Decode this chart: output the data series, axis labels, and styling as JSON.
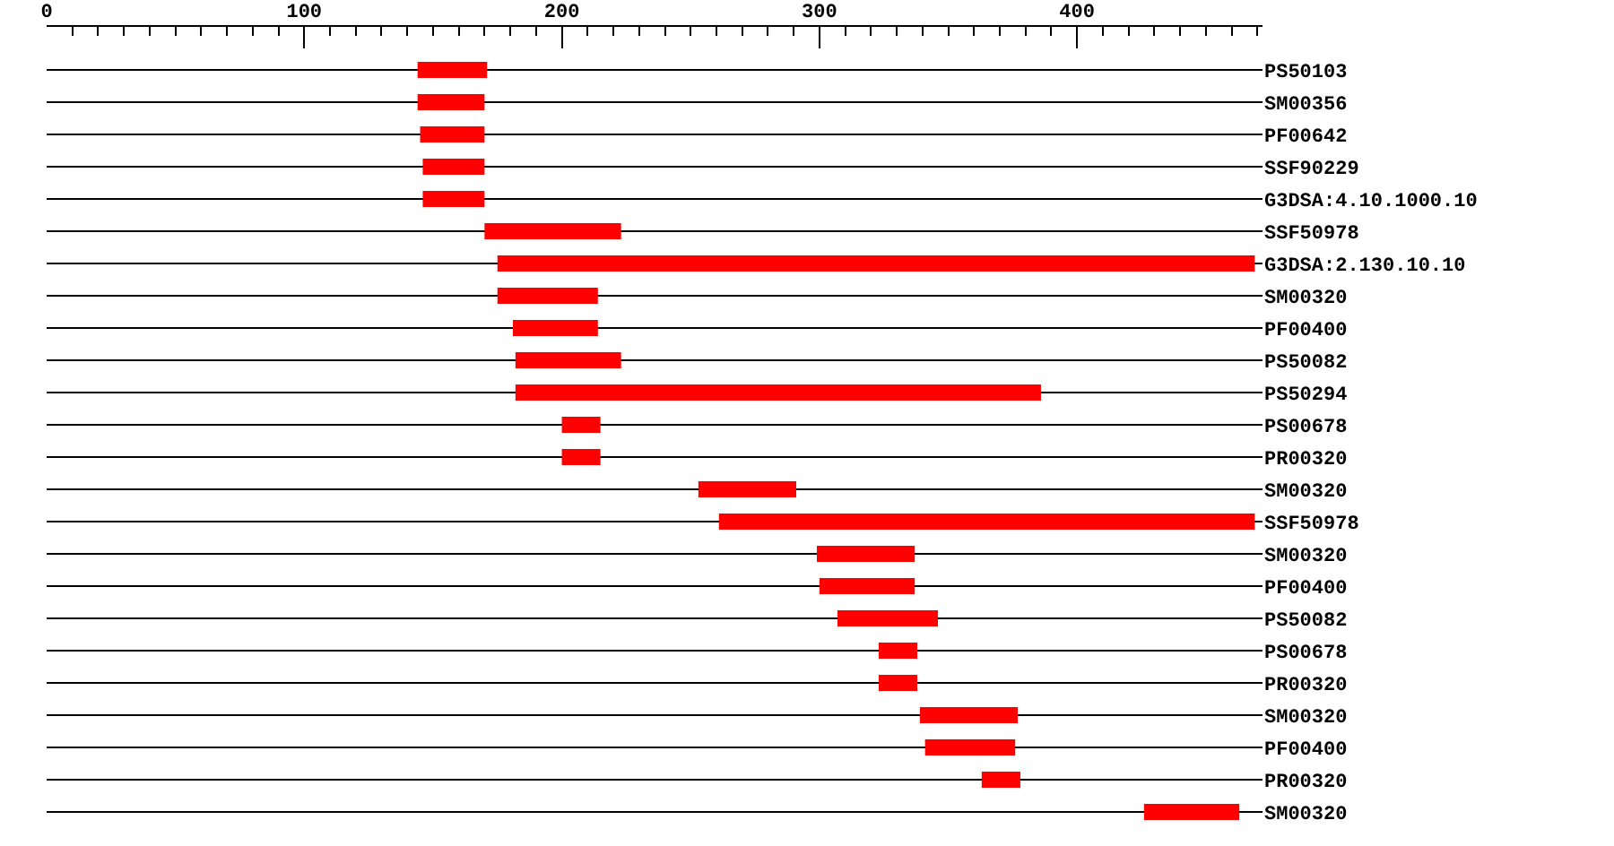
{
  "chart_data": {
    "type": "bar",
    "orientation": "horizontal",
    "color": "#ff0000",
    "grid": "y",
    "categories": [
      "PS50103",
      "SM00356",
      "PF00642",
      "SSF90229",
      "G3DSA:4.10.1000.10",
      "SSF50978",
      "G3DSA:2.130.10.10",
      "SM00320",
      "PF00400",
      "PS50082",
      "PS50294",
      "PS00678",
      "PR00320",
      "SM00320",
      "SSF50978",
      "SM00320",
      "PF00400",
      "PS50082",
      "PS00678",
      "PR00320",
      "SM00320",
      "PF00400",
      "PR00320",
      "SM00320"
    ],
    "base": [
      144,
      144,
      145,
      146,
      146,
      170,
      175,
      175,
      181,
      182,
      182,
      200,
      200,
      253,
      261,
      299,
      300,
      307,
      323,
      323,
      339,
      341,
      363,
      426
    ],
    "values": [
      27,
      26,
      25,
      24,
      24,
      53,
      294,
      39,
      33,
      41,
      204,
      15,
      15,
      38,
      208,
      38,
      37,
      39,
      15,
      15,
      38,
      35,
      15,
      37
    ],
    "xlim": [
      0,
      472
    ],
    "xticks": [
      0,
      {
        "value": 10,
        "label": null
      },
      {
        "value": 20,
        "label": null
      },
      {
        "value": 30,
        "label": null
      },
      {
        "value": 40,
        "label": null
      },
      {
        "value": 50,
        "label": null
      },
      {
        "value": 60,
        "label": null
      },
      {
        "value": 70,
        "label": null
      },
      {
        "value": 80,
        "label": null
      },
      {
        "value": 90,
        "label": null
      },
      100,
      {
        "value": 110,
        "label": null
      },
      {
        "value": 120,
        "label": null
      },
      {
        "value": 130,
        "label": null
      },
      {
        "value": 140,
        "label": null
      },
      {
        "value": 150,
        "label": null
      },
      {
        "value": 160,
        "label": null
      },
      {
        "value": 170,
        "label": null
      },
      {
        "value": 180,
        "label": null
      },
      {
        "value": 190,
        "label": null
      },
      200,
      {
        "value": 210,
        "label": null
      },
      {
        "value": 220,
        "label": null
      },
      {
        "value": 230,
        "label": null
      },
      {
        "value": 240,
        "label": null
      },
      {
        "value": 250,
        "label": null
      },
      {
        "value": 260,
        "label": null
      },
      {
        "value": 270,
        "label": null
      },
      {
        "value": 280,
        "label": null
      },
      {
        "value": 290,
        "label": null
      },
      300,
      {
        "value": 310,
        "label": null
      },
      {
        "value": 320,
        "label": null
      },
      {
        "value": 330,
        "label": null
      },
      {
        "value": 340,
        "label": null
      },
      {
        "value": 350,
        "label": null
      },
      {
        "value": 360,
        "label": null
      },
      {
        "value": 370,
        "label": null
      },
      {
        "value": 380,
        "label": null
      },
      {
        "value": 390,
        "label": null
      },
      400,
      {
        "value": 410,
        "label": null
      },
      {
        "value": 420,
        "label": null
      },
      {
        "value": 430,
        "label": null
      },
      {
        "value": 440,
        "label": null
      },
      {
        "value": 450,
        "label": null
      },
      {
        "value": 460,
        "label": null
      },
      {
        "value": 470,
        "label": null
      }
    ]
  }
}
